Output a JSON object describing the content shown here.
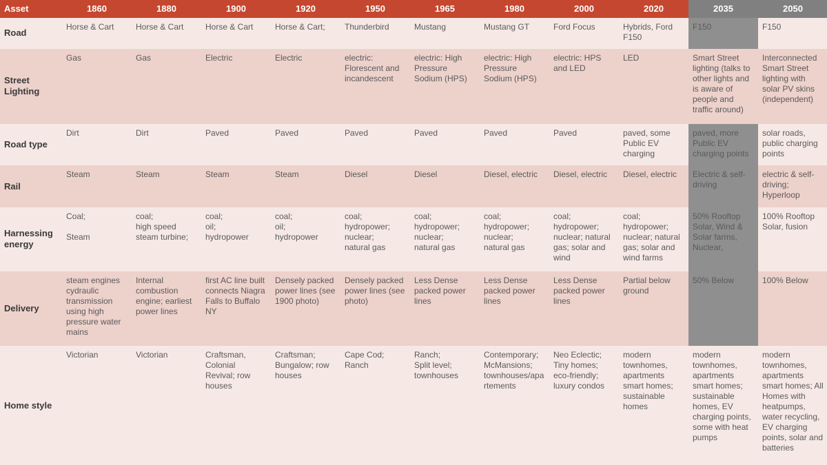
{
  "colors": {
    "header_bg_normal": "#c6472f",
    "header_bg_future": "#808080",
    "row_bg_light": "#f6e9e5",
    "row_bg_dark": "#edd1cb",
    "cell_future_bg": "#8f8f8f",
    "text_header": "#ffffff",
    "text_body": "#5a5a5a",
    "text_label": "#3a3a3a"
  },
  "columns": [
    {
      "key": "asset",
      "label": "Asset",
      "future": false
    },
    {
      "key": "1860",
      "label": "1860",
      "future": false
    },
    {
      "key": "1880",
      "label": "1880",
      "future": false
    },
    {
      "key": "1900",
      "label": "1900",
      "future": false
    },
    {
      "key": "1920",
      "label": "1920",
      "future": false
    },
    {
      "key": "1950",
      "label": "1950",
      "future": false
    },
    {
      "key": "1965",
      "label": "1965",
      "future": false
    },
    {
      "key": "1980",
      "label": "1980",
      "future": false
    },
    {
      "key": "2000",
      "label": "2000",
      "future": false
    },
    {
      "key": "2020",
      "label": "2020",
      "future": false
    },
    {
      "key": "2035",
      "label": "2035",
      "future": true
    },
    {
      "key": "2050",
      "label": "2050",
      "future": true
    }
  ],
  "rows": [
    {
      "label": "Road",
      "cells": [
        "Horse & Cart",
        "Horse & Cart",
        "Horse & Cart",
        "Horse & Cart;",
        "Thunderbird",
        "Mustang",
        "Mustang GT",
        "Ford Focus",
        "Hybrids, Ford F150",
        "F150",
        "F150"
      ],
      "future_highlight": [
        false,
        false,
        false,
        false,
        false,
        false,
        false,
        false,
        false,
        true,
        false
      ]
    },
    {
      "label": "Street Lighting",
      "cells": [
        "Gas",
        "Gas",
        "Electric",
        "Electric",
        "electric: Florescent and incandescent",
        "electric: High Pressure Sodium (HPS)",
        "electric: High Pressure Sodium (HPS)",
        "electric: HPS and LED",
        "LED",
        "Smart Street lighting (talks to other lights and is aware of people and traffic around)",
        "Interconnected Smart Street lighting with solar PV skins (independent)"
      ],
      "future_highlight": [
        false,
        false,
        false,
        false,
        false,
        false,
        false,
        false,
        false,
        false,
        false
      ]
    },
    {
      "label": "Road type",
      "cells": [
        "Dirt",
        "Dirt",
        "Paved",
        "Paved",
        "Paved",
        "Paved",
        "Paved",
        "Paved",
        "paved, some Public EV charging",
        "paved, more Public EV charging  points",
        "solar roads, public charging points"
      ],
      "future_highlight": [
        false,
        false,
        false,
        false,
        false,
        false,
        false,
        false,
        false,
        true,
        false
      ]
    },
    {
      "label": "Rail",
      "cells": [
        "Steam",
        "Steam",
        "Steam",
        "Steam",
        "Diesel",
        "Diesel",
        "Diesel, electric",
        "Diesel, electric",
        "Diesel, electric",
        "Electric & self-driving",
        "electric & self-driving; Hyperloop"
      ],
      "future_highlight": [
        false,
        false,
        false,
        false,
        false,
        false,
        false,
        false,
        false,
        true,
        false
      ]
    },
    {
      "label": "Harnessing energy",
      "cells": [
        "Coal;\n\nSteam",
        "coal;\nhigh speed steam turbine;",
        "coal;\noil;\nhydropower",
        "coal;\noil;\nhydropower",
        "coal;\nhydropower;\nnuclear;\nnatural gas",
        "coal;\nhydropower;\nnuclear;\nnatural gas",
        "coal;\nhydropower;\nnuclear;\nnatural gas",
        "coal;\nhydropower;\nnuclear; natural gas; solar and wind",
        "coal; hydropower; nuclear; natural gas; solar and wind farms",
        "50% Rooftop Solar, Wind & Solar farms, Nuclear,",
        "100% Rooftop Solar, fusion"
      ],
      "future_highlight": [
        false,
        false,
        false,
        false,
        false,
        false,
        false,
        false,
        false,
        true,
        false
      ]
    },
    {
      "label": "Delivery",
      "cells": [
        "steam engines cydraulic transmission using high pressure water mains",
        "Internal combustion engine; earliest power lines",
        "first AC  line built connects Niagra Falls to Buffalo NY",
        "Densely packed power lines (see 1900 photo)",
        "Densely packed power lines (see photo)",
        "Less Dense packed power lines",
        "Less Dense packed power lines",
        "Less Dense packed power lines",
        "Partial below ground",
        "50% Below",
        "100% Below"
      ],
      "future_highlight": [
        false,
        false,
        false,
        false,
        false,
        false,
        false,
        false,
        false,
        true,
        false
      ]
    },
    {
      "label": "Home style",
      "cells": [
        "Victorian",
        "Victorian",
        "Craftsman, Colonial Revival; row houses",
        "Craftsman; Bungalow; row houses",
        "Cape Cod; Ranch",
        "Ranch;\nSplit level; townhouses",
        "Contemporary;\nMcMansions; townhouses/apartements",
        "Neo Eclectic; Tiny homes; eco-friendly; luxury condos",
        "modern townhomes, apartments smart homes; sustainable homes",
        "modern townhomes, apartments smart homes; sustainable homes, EV charging points, some with heat pumps",
        "modern townhomes, apartments smart homes; All Homes with heatpumps, water recycling, EV charging points, solar and batteries"
      ],
      "future_highlight": [
        false,
        false,
        false,
        false,
        false,
        false,
        false,
        false,
        false,
        false,
        false
      ]
    }
  ]
}
